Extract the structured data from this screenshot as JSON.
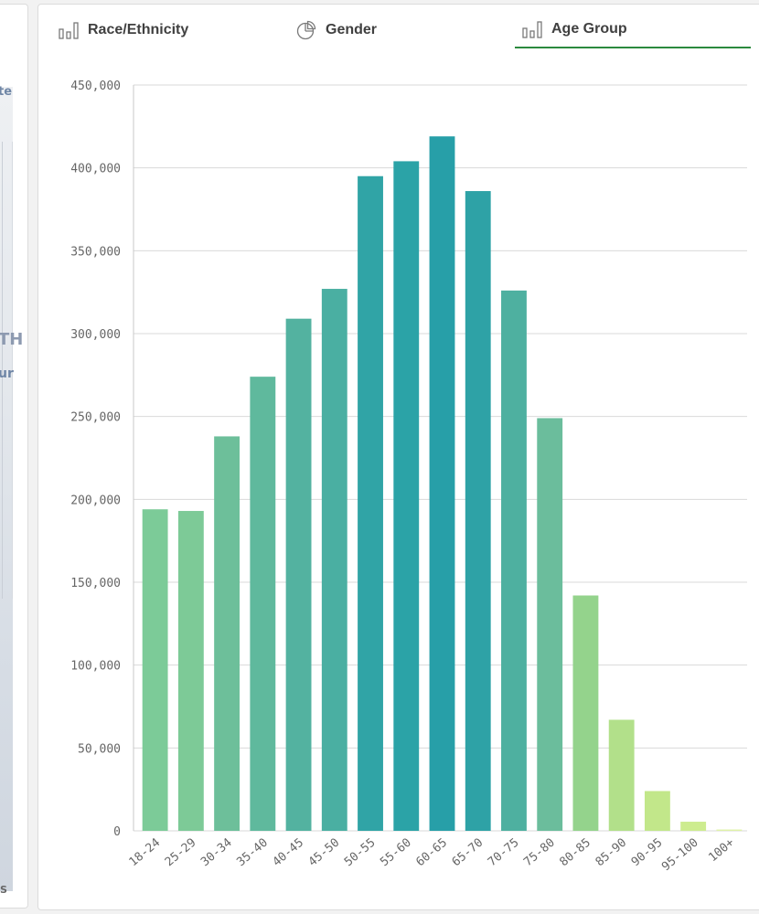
{
  "left_fragments": {
    "a": "te",
    "b": "TH",
    "c": "ur",
    "d": "S"
  },
  "tabs": [
    {
      "label": "Race/Ethnicity",
      "icon": "bar-chart-icon",
      "active": false
    },
    {
      "label": "Gender",
      "icon": "pie-chart-icon",
      "active": false
    },
    {
      "label": "Age Group",
      "icon": "bar-chart-icon",
      "active": true
    }
  ],
  "colors": {
    "active_tab_underline": "#2b8a3e",
    "gridline": "#d9d9d9",
    "text": "#404040"
  },
  "chart_data": {
    "type": "bar",
    "categories": [
      "18-24",
      "25-29",
      "30-34",
      "35-40",
      "40-45",
      "45-50",
      "50-55",
      "55-60",
      "60-65",
      "65-70",
      "70-75",
      "75-80",
      "80-85",
      "85-90",
      "90-95",
      "95-100",
      "100+"
    ],
    "values": [
      194000,
      193000,
      238000,
      274000,
      309000,
      327000,
      395000,
      404000,
      419000,
      386000,
      326000,
      249000,
      142000,
      67000,
      24000,
      5500,
      800
    ],
    "ylim": [
      0,
      450000
    ],
    "yticks": [
      0,
      50000,
      100000,
      150000,
      200000,
      250000,
      300000,
      350000,
      400000,
      450000
    ],
    "ytick_labels": [
      "0",
      "50,000",
      "100,000",
      "150,000",
      "200,000",
      "250,000",
      "300,000",
      "350,000",
      "400,000",
      "450,000"
    ],
    "grid": true,
    "bar_colors": [
      "#7ccb98",
      "#7dca97",
      "#6dbf9a",
      "#5fb99d",
      "#53b2a0",
      "#4aafa2",
      "#30a4a6",
      "#2ba3a7",
      "#279fa8",
      "#2ea2a6",
      "#4eb0a0",
      "#6bbd9c",
      "#94d38c",
      "#b2e08a",
      "#c2e78a",
      "#cdec8f",
      "#dff2a8"
    ]
  }
}
